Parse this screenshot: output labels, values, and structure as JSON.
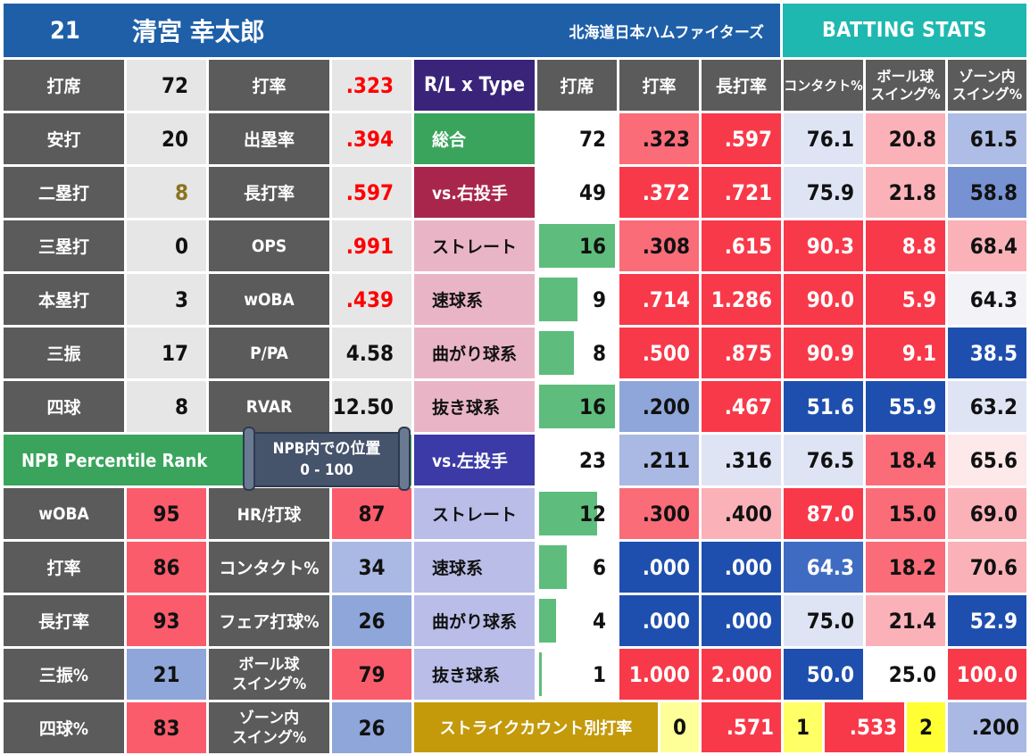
{
  "header": {
    "number": "21",
    "player_name": "清宮 幸太郎",
    "team": "北海道日本ハムファイターズ",
    "section_title": "BATTING STATS"
  },
  "basic_stats": {
    "left": [
      {
        "label": "打席",
        "value": "72"
      },
      {
        "label": "安打",
        "value": "20"
      },
      {
        "label": "二塁打",
        "value": "8"
      },
      {
        "label": "三塁打",
        "value": "0"
      },
      {
        "label": "本塁打",
        "value": "3"
      },
      {
        "label": "三振",
        "value": "17"
      },
      {
        "label": "四球",
        "value": "8"
      }
    ],
    "right": [
      {
        "label": "打率",
        "value": ".323"
      },
      {
        "label": "出塁率",
        "value": ".394"
      },
      {
        "label": "長打率",
        "value": ".597"
      },
      {
        "label": "OPS",
        "value": ".991"
      },
      {
        "label": "wOBA",
        "value": ".439"
      },
      {
        "label": "P/PA",
        "value": "4.58"
      },
      {
        "label": "RVAR",
        "value": "12.50"
      }
    ]
  },
  "percentile": {
    "title": "NPB Percentile Rank",
    "tooltip_line1": "NPB内での位置",
    "tooltip_line2": "0 - 100",
    "left": [
      {
        "label": "wOBA",
        "value": "95",
        "color": "#fa5c6c"
      },
      {
        "label": "打率",
        "value": "86",
        "color": "#fa5c6c"
      },
      {
        "label": "長打率",
        "value": "93",
        "color": "#fa5c6c"
      },
      {
        "label": "三振%",
        "value": "21",
        "color": "#8ea6da"
      },
      {
        "label": "四球%",
        "value": "83",
        "color": "#fa5c6c"
      }
    ],
    "right": [
      {
        "label": "HR/打球",
        "label2": "",
        "value": "87",
        "color": "#fa5c6c"
      },
      {
        "label": "コンタクト%",
        "label2": "",
        "value": "34",
        "color": "#aab9e4"
      },
      {
        "label": "フェア打球%",
        "label2": "",
        "value": "26",
        "color": "#8ea6da"
      },
      {
        "label": "ボール球",
        "label2": "スイング%",
        "value": "79",
        "color": "#fa5c6c"
      },
      {
        "label": "ゾーン内",
        "label2": "スイング%",
        "value": "26",
        "color": "#8ea6da"
      }
    ]
  },
  "split_table": {
    "header": {
      "type": "R/L x Type",
      "pa": "打席",
      "avg": "打率",
      "slg": "長打率",
      "contact": "コンタクト%",
      "chase1": "ボール球",
      "chase2": "スイング%",
      "zone1": "ゾーン内",
      "zone2": "スイング%"
    },
    "rows": [
      {
        "type": "総合",
        "type_bg": "#3aa45d",
        "type_dark": false,
        "pa": "72",
        "pa_frac": 0,
        "avg": ".323",
        "avg_bg": "#fa6c78",
        "slg": ".597",
        "slg_bg": "#f8394a",
        "contact": "76.1",
        "contact_bg": "#dfe4f4",
        "chase": "20.8",
        "chase_bg": "#fbb1b8",
        "zone": "61.5",
        "zone_bg": "#aebde6"
      },
      {
        "type": "vs.右投手",
        "type_bg": "#a8264c",
        "type_dark": false,
        "pa": "49",
        "pa_frac": 0,
        "avg": ".372",
        "avg_bg": "#f8394a",
        "slg": ".721",
        "slg_bg": "#f8394a",
        "contact": "75.9",
        "contact_bg": "#dfe4f4",
        "chase": "21.8",
        "chase_bg": "#fbb1b8",
        "zone": "58.8",
        "zone_bg": "#7692d2"
      },
      {
        "type": "ストレート",
        "type_bg": "#e9b5c6",
        "type_dark": true,
        "pa": "16",
        "pa_frac": 1.0,
        "avg": ".308",
        "avg_bg": "#fa6c78",
        "slg": ".615",
        "slg_bg": "#f8394a",
        "contact": "90.3",
        "contact_bg": "#f8394a",
        "chase": "8.8",
        "chase_bg": "#f8394a",
        "zone": "68.4",
        "zone_bg": "#fbb1b8"
      },
      {
        "type": "速球系",
        "type_bg": "#e9b5c6",
        "type_dark": true,
        "pa": "9",
        "pa_frac": 0.5,
        "avg": ".714",
        "avg_bg": "#f8394a",
        "slg": "1.286",
        "slg_bg": "#f8394a",
        "contact": "90.0",
        "contact_bg": "#f8394a",
        "chase": "5.9",
        "chase_bg": "#f8394a",
        "zone": "64.3",
        "zone_bg": "#f2f2f7"
      },
      {
        "type": "曲がり球系",
        "type_bg": "#e9b5c6",
        "type_dark": true,
        "pa": "8",
        "pa_frac": 0.46,
        "avg": ".500",
        "avg_bg": "#f8394a",
        "slg": ".875",
        "slg_bg": "#f8394a",
        "contact": "90.9",
        "contact_bg": "#f8394a",
        "chase": "9.1",
        "chase_bg": "#f8394a",
        "zone": "38.5",
        "zone_bg": "#1f4fae"
      },
      {
        "type": "抜き球系",
        "type_bg": "#e9b5c6",
        "type_dark": true,
        "pa": "16",
        "pa_frac": 1.0,
        "avg": ".200",
        "avg_bg": "#8ea6da",
        "slg": ".467",
        "slg_bg": "#f8394a",
        "contact": "51.6",
        "contact_bg": "#1f4fae",
        "chase": "55.9",
        "chase_bg": "#1f4fae",
        "zone": "63.2",
        "zone_bg": "#dfe4f4"
      },
      {
        "type": "vs.左投手",
        "type_bg": "#3b3aa6",
        "type_dark": false,
        "pa": "23",
        "pa_frac": 0,
        "avg": ".211",
        "avg_bg": "#a9b9e4",
        "slg": ".316",
        "slg_bg": "#dfe4f4",
        "contact": "76.5",
        "contact_bg": "#dfe4f4",
        "chase": "18.4",
        "chase_bg": "#fa6c78",
        "zone": "65.6",
        "zone_bg": "#fde8ea"
      },
      {
        "type": "ストレート",
        "type_bg": "#b9bde8",
        "type_dark": true,
        "pa": "12",
        "pa_frac": 0.77,
        "avg": ".300",
        "avg_bg": "#fa6c78",
        "slg": ".400",
        "slg_bg": "#fbb1b8",
        "contact": "87.0",
        "contact_bg": "#f8394a",
        "chase": "15.0",
        "chase_bg": "#fa6c78",
        "zone": "69.0",
        "zone_bg": "#fbb1b8"
      },
      {
        "type": "速球系",
        "type_bg": "#b9bde8",
        "type_dark": true,
        "pa": "6",
        "pa_frac": 0.36,
        "avg": ".000",
        "avg_bg": "#1f4fae",
        "slg": ".000",
        "slg_bg": "#1f4fae",
        "contact": "64.3",
        "contact_bg": "#3f6cc2",
        "chase": "18.2",
        "chase_bg": "#fa6c78",
        "zone": "70.6",
        "zone_bg": "#fbb1b8"
      },
      {
        "type": "曲がり球系",
        "type_bg": "#b9bde8",
        "type_dark": true,
        "pa": "4",
        "pa_frac": 0.22,
        "avg": ".000",
        "avg_bg": "#1f4fae",
        "slg": ".000",
        "slg_bg": "#1f4fae",
        "contact": "75.0",
        "contact_bg": "#dfe4f4",
        "chase": "21.4",
        "chase_bg": "#fbb1b8",
        "zone": "52.9",
        "zone_bg": "#1f4fae"
      },
      {
        "type": "抜き球系",
        "type_bg": "#b9bde8",
        "type_dark": true,
        "pa": "1",
        "pa_frac": 0.04,
        "avg": "1.000",
        "avg_bg": "#f8394a",
        "slg": "2.000",
        "slg_bg": "#f8394a",
        "contact": "50.0",
        "contact_bg": "#1f4fae",
        "chase": "25.0",
        "chase_bg": "#ffffff",
        "zone": "100.0",
        "zone_bg": "#f8394a"
      }
    ]
  },
  "strike_count": {
    "label": "ストライクカウント別打率",
    "items": [
      {
        "count": "0",
        "avg": ".571",
        "avg_bg": "#f8394a"
      },
      {
        "count": "1",
        "avg": ".533",
        "avg_bg": "#f8394a"
      },
      {
        "count": "2",
        "avg": ".200",
        "avg_bg": "#a9b9e4"
      }
    ]
  }
}
